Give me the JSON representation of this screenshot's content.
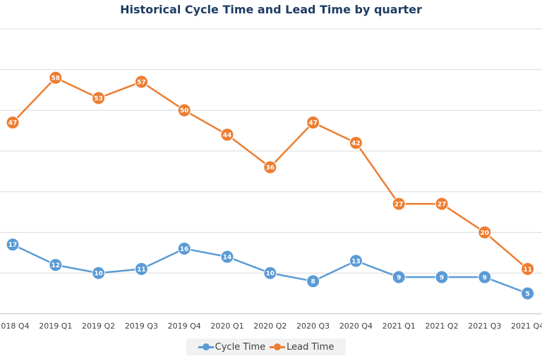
{
  "chart_data": {
    "type": "line",
    "title": "Historical Cycle Time and Lead Time by quarter",
    "categories": [
      "2018 Q4",
      "2019 Q1",
      "2019 Q2",
      "2019 Q3",
      "2019 Q4",
      "2020 Q1",
      "2020 Q2",
      "2020 Q3",
      "2020 Q4",
      "2021 Q1",
      "2021 Q2",
      "2021 Q3",
      "2021 Q4"
    ],
    "series": [
      {
        "name": "Cycle Time",
        "color": "#5b9bd5",
        "values": [
          17,
          12,
          10,
          11,
          16,
          14,
          10,
          8,
          13,
          9,
          9,
          9,
          5
        ]
      },
      {
        "name": "Lead Time",
        "color": "#ed7d31",
        "values": [
          47,
          58,
          53,
          57,
          50,
          44,
          36,
          47,
          42,
          27,
          27,
          20,
          11
        ]
      }
    ],
    "ylim": [
      0,
      70
    ],
    "grid": true,
    "legend_position": "bottom"
  }
}
